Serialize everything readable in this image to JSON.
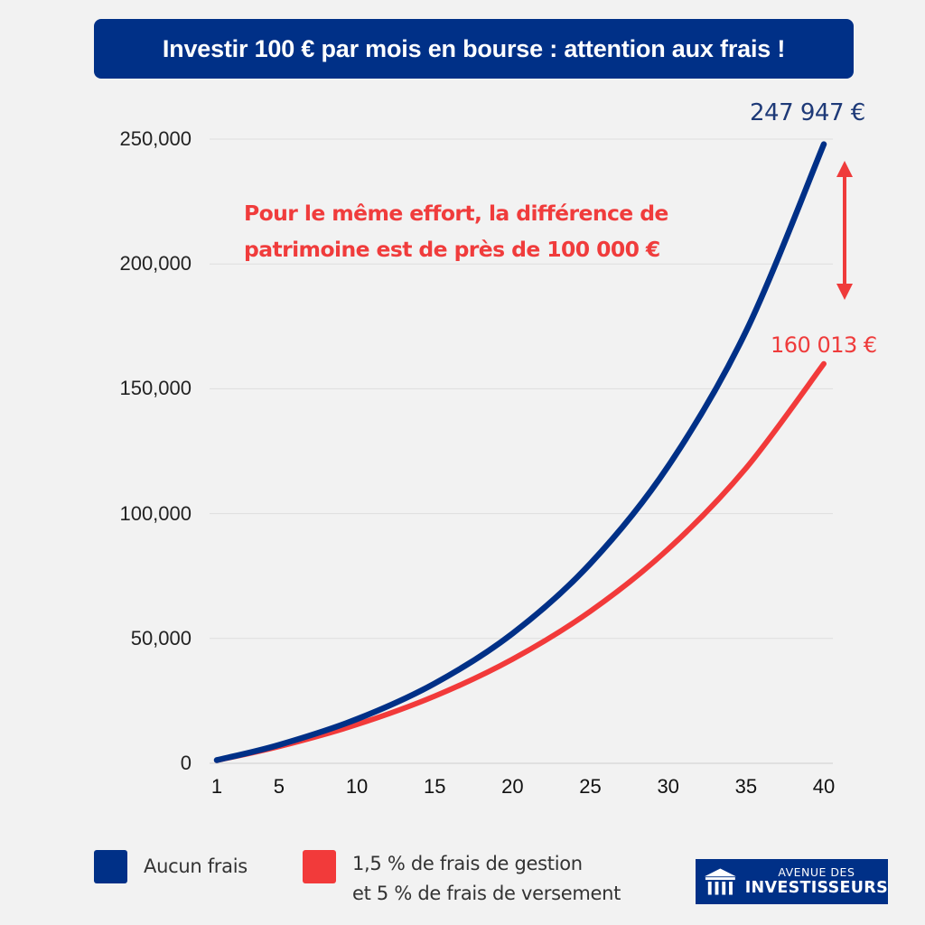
{
  "title": "Investir 100 € par mois en bourse : attention aux frais !",
  "annotation": {
    "line1": "Pour le même effort, la différence de",
    "line2": "patrimoine est de près de 100 000 €"
  },
  "end_labels": {
    "blue": "247 947 €",
    "red": "160 013 €"
  },
  "legend": {
    "items": [
      {
        "label": "Aucun frais",
        "color": "#003087"
      },
      {
        "label_line1": "1,5 % de frais de gestion",
        "label_line2": "et 5 % de frais de versement",
        "color": "#f23a3a"
      }
    ]
  },
  "logo": {
    "line1": "AVENUE DES",
    "line2": "INVESTISSEURS",
    "icon": "bank-columns-icon"
  },
  "colors": {
    "title_bg": "#003087",
    "series_blue": "#003087",
    "series_red": "#f23a3a",
    "annotation_red": "#f03c3c",
    "background": "#f2f2f2",
    "gridline": "#dddddd"
  },
  "chart_data": {
    "type": "line",
    "title": "Investir 100 € par mois en bourse : attention aux frais !",
    "xlabel": "",
    "ylabel": "",
    "x": [
      1,
      5,
      10,
      15,
      20,
      25,
      30,
      35,
      40
    ],
    "x_ticks": [
      "1",
      "5",
      "10",
      "15",
      "20",
      "25",
      "30",
      "35",
      "40"
    ],
    "y_ticks": [
      "0",
      "50,000",
      "100,000",
      "150,000",
      "200,000",
      "250,000"
    ],
    "ylim": [
      0,
      250000
    ],
    "xlim": [
      1,
      40
    ],
    "grid": "horizontal",
    "legend_position": "bottom",
    "series": [
      {
        "name": "Aucun frais",
        "color": "#003087",
        "values": [
          1282,
          7390,
          17700,
          32000,
          52000,
          80000,
          119000,
          173000,
          247947
        ]
      },
      {
        "name": "1,5 % de frais de gestion et 5 % de frais de versement",
        "color": "#f23a3a",
        "values": [
          1201,
          6750,
          15530,
          26900,
          41700,
          60900,
          85800,
          118200,
          160013
        ]
      }
    ],
    "annotations": [
      "247 947 €",
      "160 013 €",
      "Pour le même effort, la différence de patrimoine est de près de 100 000 €"
    ]
  }
}
